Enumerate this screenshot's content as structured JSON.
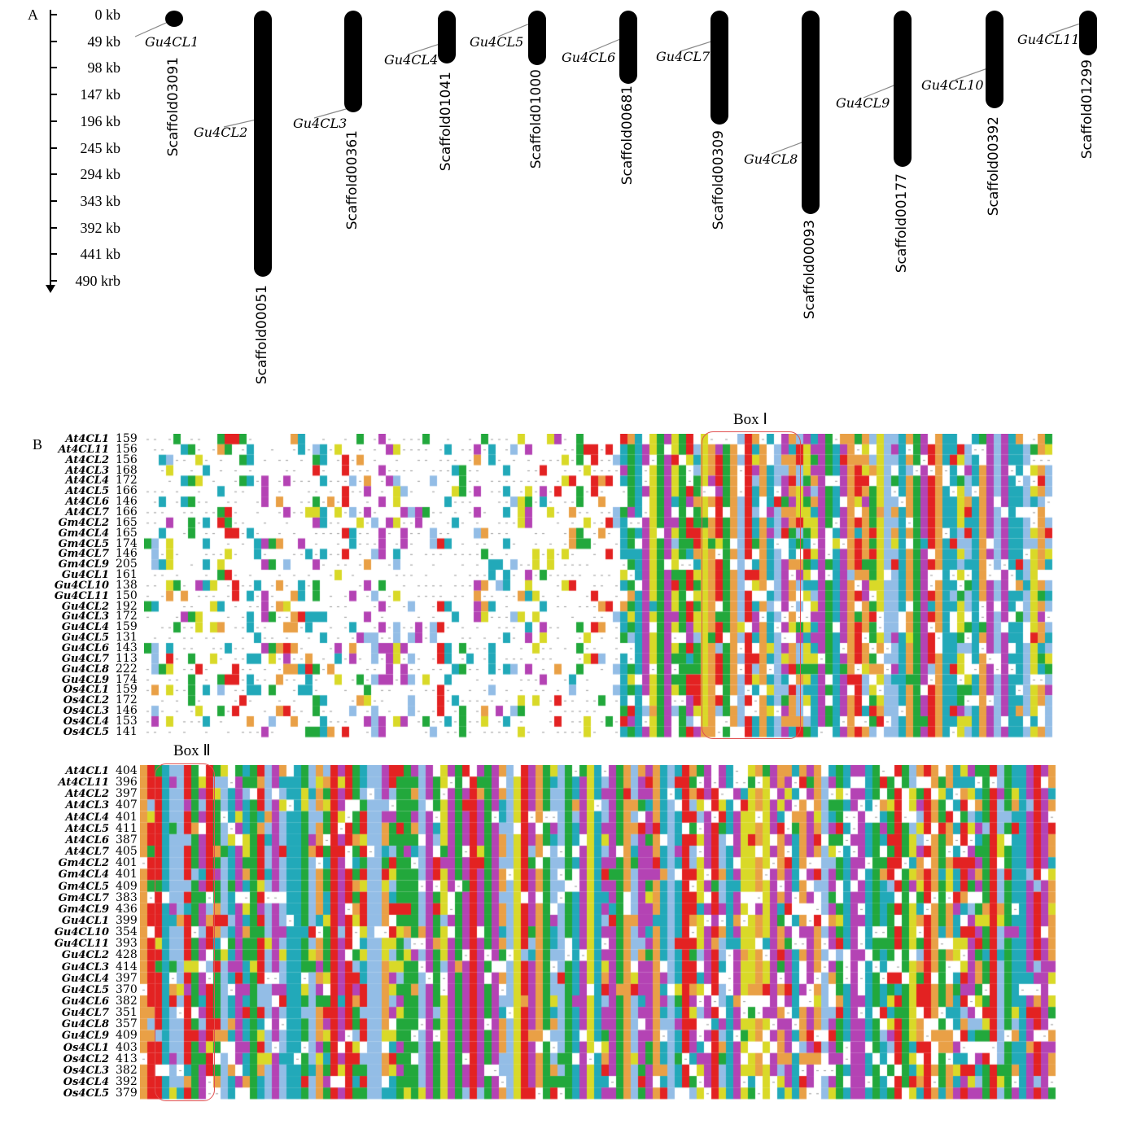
{
  "panelA": {
    "label": "A",
    "scale_ticks": [
      "0 kb",
      "49 kb",
      "98 kb",
      "147 kb",
      "196 kb",
      "245 kb",
      "294 kb",
      "343 kb",
      "392 kb",
      "441 kb",
      "490 krb"
    ],
    "scaffolds": [
      {
        "name": "Scaffold03091",
        "length_kb": 15,
        "gene": "Gu4CL1",
        "gene_pos_kb": 20
      },
      {
        "name": "Scaffold00051",
        "length_kb": 490,
        "gene": "Gu4CL2",
        "gene_pos_kb": 200
      },
      {
        "name": "Scaffold00361",
        "length_kb": 188,
        "gene": "Gu4CL3",
        "gene_pos_kb": 180
      },
      {
        "name": "Scaffold01041",
        "length_kb": 98,
        "gene": "Gu4CL4",
        "gene_pos_kb": 60
      },
      {
        "name": "Scaffold01000",
        "length_kb": 100,
        "gene": "Gu4CL5",
        "gene_pos_kb": 22
      },
      {
        "name": "Scaffold00681",
        "length_kb": 135,
        "gene": "Gu4CL6",
        "gene_pos_kb": 50
      },
      {
        "name": "Scaffold00309",
        "length_kb": 210,
        "gene": "Gu4CL7",
        "gene_pos_kb": 55
      },
      {
        "name": "Scaffold00093",
        "length_kb": 375,
        "gene": "Gu4CL8",
        "gene_pos_kb": 240
      },
      {
        "name": "Scaffold00177",
        "length_kb": 288,
        "gene": "Gu4CL9",
        "gene_pos_kb": 135
      },
      {
        "name": "Scaffold00392",
        "length_kb": 180,
        "gene": "Gu4CL10",
        "gene_pos_kb": 105
      },
      {
        "name": "Scaffold01299",
        "length_kb": 83,
        "gene": "Gu4CL11",
        "gene_pos_kb": 22
      }
    ]
  },
  "panelB": {
    "label": "B",
    "box1_label": "Box Ⅰ",
    "box2_label": "Box Ⅱ",
    "sequences": [
      "At4CL1",
      "At4CL11",
      "At4CL2",
      "At4CL3",
      "At4CL4",
      "At4CL5",
      "At4CL6",
      "At4CL7",
      "Gm4CL2",
      "Gm4CL4",
      "Gm4CL5",
      "Gm4CL7",
      "Gm4CL9",
      "Gu4CL1",
      "Gu4CL10",
      "Gu4CL11",
      "Gu4CL2",
      "Gu4CL3",
      "Gu4CL4",
      "Gu4CL5",
      "Gu4CL6",
      "Gu4CL7",
      "Gu4CL8",
      "Gu4CL9",
      "Os4CL1",
      "Os4CL2",
      "Os4CL3",
      "Os4CL4",
      "Os4CL5"
    ],
    "block1_starts": [
      "159",
      "156",
      "156",
      "168",
      "172",
      "166",
      "146",
      "166",
      "165",
      "165",
      "174",
      "146",
      "205",
      "161",
      "138",
      "150",
      "192",
      "172",
      "159",
      "131",
      "143",
      "113",
      "222",
      "174",
      "159",
      "172",
      "146",
      "153",
      "141"
    ],
    "block2_starts": [
      "404",
      "396",
      "397",
      "407",
      "401",
      "411",
      "387",
      "405",
      "401",
      "401",
      "409",
      "383",
      "436",
      "399",
      "354",
      "393",
      "428",
      "414",
      "397",
      "370",
      "382",
      "351",
      "357",
      "409",
      "403",
      "413",
      "382",
      "392",
      "379"
    ],
    "residue_colors": {
      "green": "#22a83c",
      "orange": "#e9a046",
      "blue": "#93bde6",
      "red": "#e32222",
      "magenta": "#b443b4",
      "yellow": "#d9d928",
      "cyan": "#22a9b9"
    }
  }
}
